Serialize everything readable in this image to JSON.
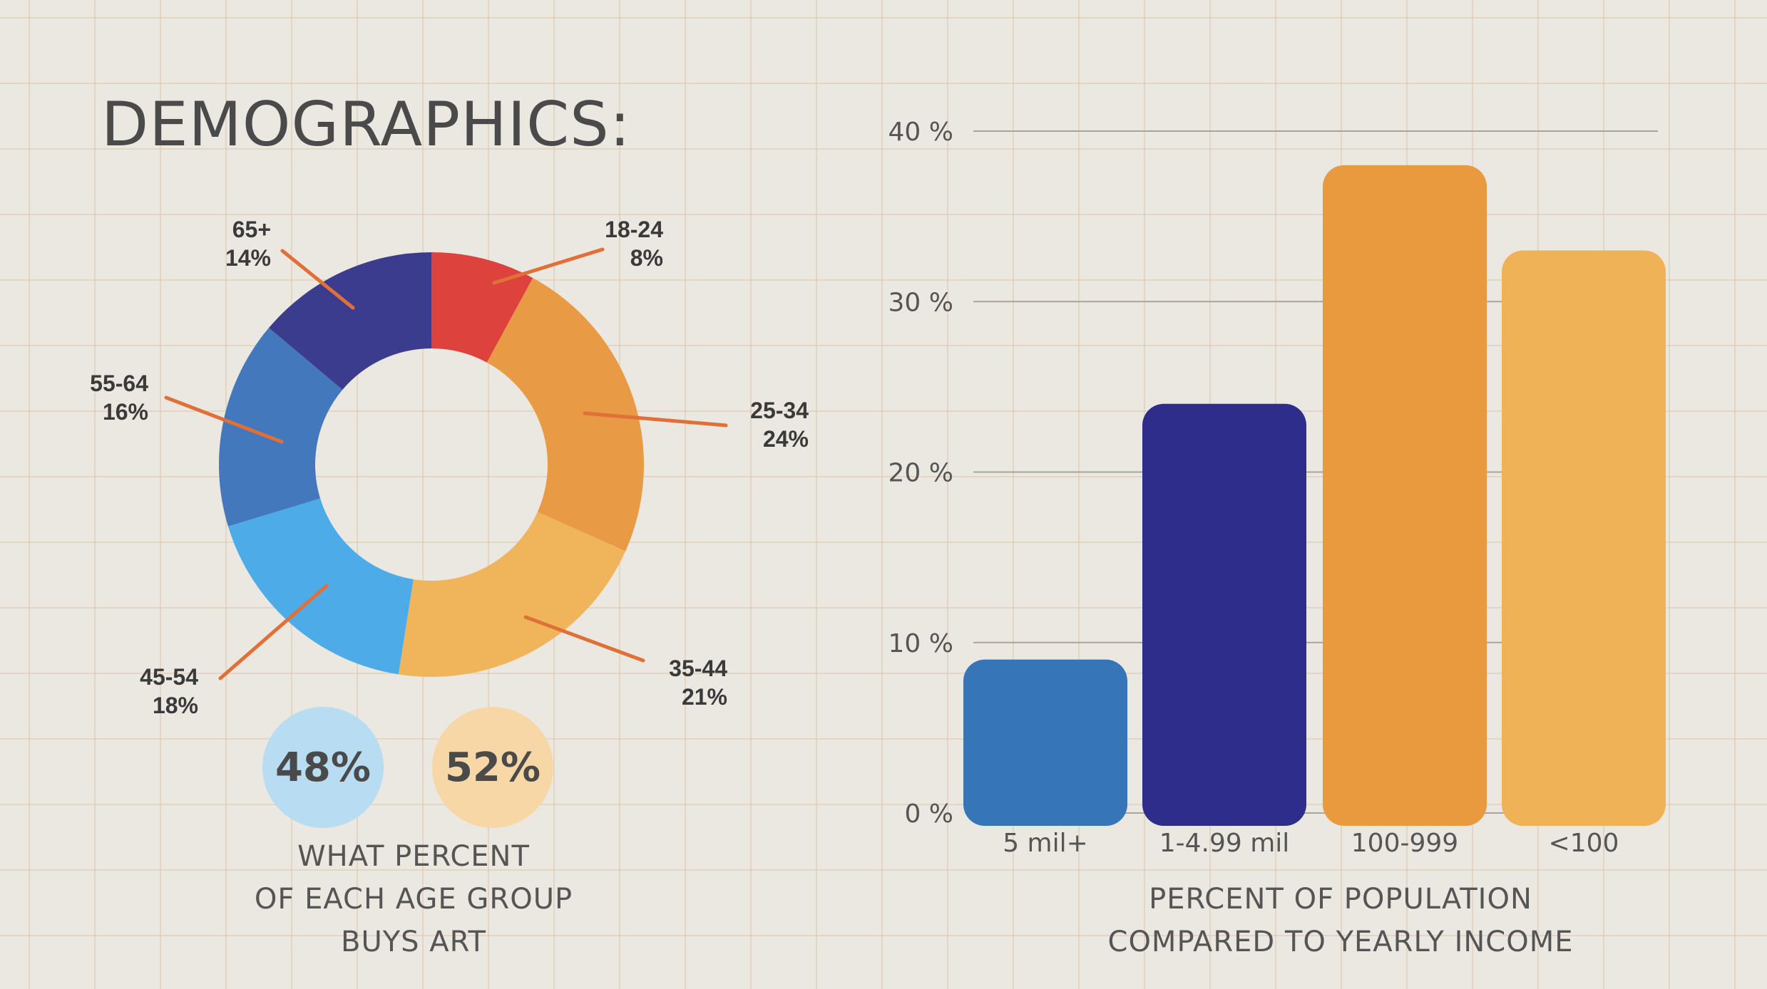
{
  "page": {
    "title": "DEMOGRAPHICS:"
  },
  "colors": {
    "background": "#ebe7e1",
    "grid": "#d6ba96",
    "leader_line": "#e07038",
    "text_dark": "#3a3a3a"
  },
  "chart_data": [
    {
      "type": "pie",
      "variant": "donut",
      "slices": [
        {
          "label": "18-24",
          "value": 8,
          "display": "8%",
          "color": "#dd423d"
        },
        {
          "label": "25-34",
          "value": 24,
          "display": "24%",
          "color": "#e99a44"
        },
        {
          "label": "35-44",
          "value": 21,
          "display": "21%",
          "color": "#f0b55a"
        },
        {
          "label": "45-54",
          "value": 18,
          "display": "18%",
          "color": "#4dabe7"
        },
        {
          "label": "55-64",
          "value": 16,
          "display": "16%",
          "color": "#4379bc"
        },
        {
          "label": "65+",
          "value": 14,
          "display": "14%",
          "color": "#3c3c8e"
        }
      ],
      "badges": [
        {
          "value": "48%",
          "color": "#b8dcf2"
        },
        {
          "value": "52%",
          "color": "#f8d7a6"
        }
      ],
      "caption": [
        "WHAT PERCENT",
        "OF EACH AGE GROUP",
        "BUYS ART"
      ]
    },
    {
      "type": "bar",
      "categories": [
        "5 mil+",
        "1-4.99 mil",
        "100-999",
        "<100"
      ],
      "values": [
        9,
        24,
        38,
        33
      ],
      "colors": [
        "#3775b9",
        "#2f2d8c",
        "#e99a3e",
        "#f0b256"
      ],
      "ylim": [
        0,
        40
      ],
      "yticks": [
        0,
        10,
        20,
        30,
        40
      ],
      "ytick_labels": [
        "0 %",
        "10 %",
        "20 %",
        "30 %",
        "40 %"
      ],
      "grid": true,
      "caption": [
        "PERCENT OF POPULATION",
        "COMPARED TO YEARLY INCOME"
      ]
    }
  ]
}
